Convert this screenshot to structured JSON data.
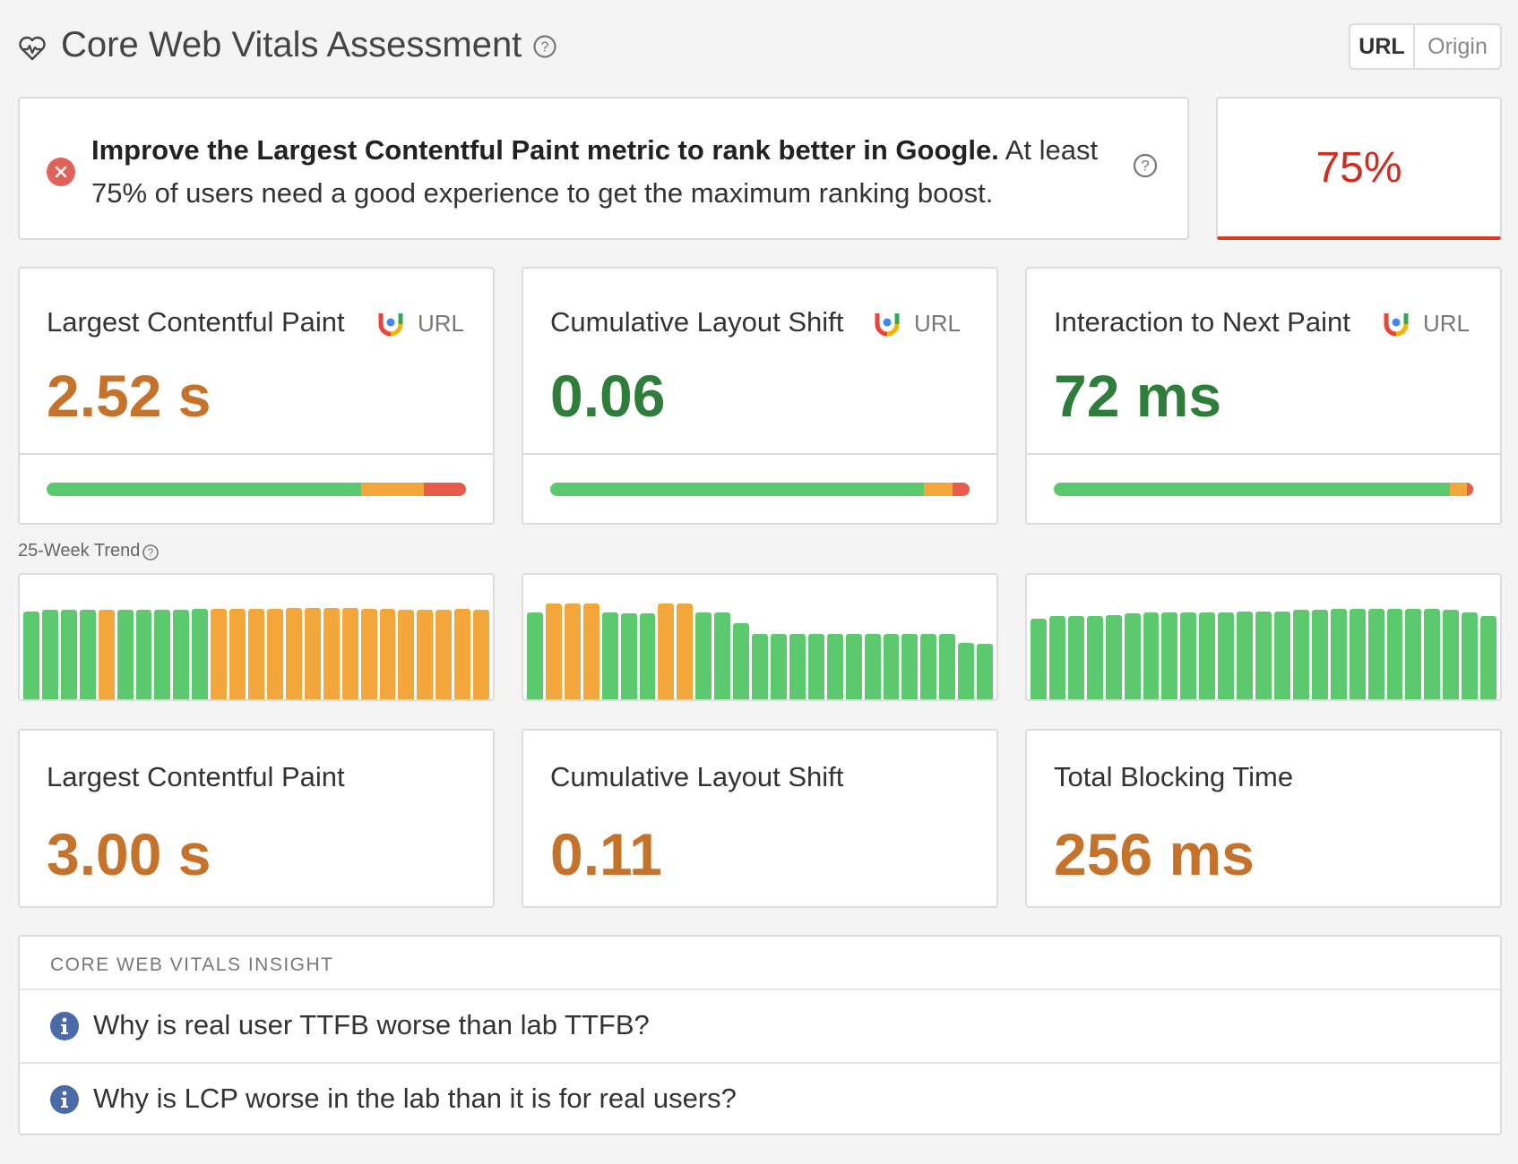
{
  "header": {
    "title": "Core Web Vitals Assessment",
    "icon": "heart-pulse-icon",
    "toggle": {
      "url_label": "URL",
      "origin_label": "Origin",
      "selected": "URL"
    }
  },
  "assessment": {
    "status": "fail",
    "message_bold": "Improve the Largest Contentful Paint metric to rank better in Google.",
    "message_rest": "At least 75% of users need a good experience to get the maximum ranking boost.",
    "score": "75%",
    "score_color": "#cc2f1f"
  },
  "field_metrics": [
    {
      "title": "Largest Contentful Paint",
      "scope": "URL",
      "value": "2.52 s",
      "status": "needs-improvement",
      "distribution": {
        "good": 0.75,
        "needs_improvement": 0.15,
        "poor": 0.1
      }
    },
    {
      "title": "Cumulative Layout Shift",
      "scope": "URL",
      "value": "0.06",
      "status": "good",
      "distribution": {
        "good": 0.89,
        "needs_improvement": 0.07,
        "poor": 0.04
      }
    },
    {
      "title": "Interaction to Next Paint",
      "scope": "URL",
      "value": "72 ms",
      "status": "good",
      "distribution": {
        "good": 0.945,
        "needs_improvement": 0.04,
        "poor": 0.015
      }
    }
  ],
  "trend": {
    "label": "25-Week Trend",
    "series": [
      {
        "metric": "Largest Contentful Paint",
        "values": [
          0.75,
          0.76,
          0.76,
          0.76,
          0.76,
          0.76,
          0.76,
          0.76,
          0.76,
          0.77,
          0.77,
          0.77,
          0.77,
          0.77,
          0.78,
          0.78,
          0.78,
          0.78,
          0.77,
          0.77,
          0.76,
          0.76,
          0.76,
          0.77,
          0.76
        ],
        "status": [
          "good",
          "good",
          "good",
          "good",
          "ni",
          "good",
          "good",
          "good",
          "good",
          "good",
          "ni",
          "ni",
          "ni",
          "ni",
          "ni",
          "ni",
          "ni",
          "ni",
          "ni",
          "ni",
          "ni",
          "ni",
          "ni",
          "ni",
          "ni"
        ]
      },
      {
        "metric": "Cumulative Layout Shift",
        "values": [
          0.74,
          0.82,
          0.82,
          0.82,
          0.74,
          0.73,
          0.73,
          0.82,
          0.82,
          0.74,
          0.74,
          0.65,
          0.56,
          0.56,
          0.56,
          0.56,
          0.56,
          0.56,
          0.56,
          0.56,
          0.56,
          0.56,
          0.56,
          0.48,
          0.47
        ],
        "status": [
          "good",
          "ni",
          "ni",
          "ni",
          "good",
          "good",
          "good",
          "ni",
          "ni",
          "good",
          "good",
          "good",
          "good",
          "good",
          "good",
          "good",
          "good",
          "good",
          "good",
          "good",
          "good",
          "good",
          "good",
          "good",
          "good"
        ]
      },
      {
        "metric": "Interaction to Next Paint",
        "values": [
          0.69,
          0.71,
          0.71,
          0.71,
          0.72,
          0.73,
          0.74,
          0.74,
          0.74,
          0.74,
          0.74,
          0.75,
          0.75,
          0.75,
          0.76,
          0.76,
          0.77,
          0.77,
          0.77,
          0.77,
          0.77,
          0.77,
          0.76,
          0.74,
          0.71
        ],
        "status": [
          "good",
          "good",
          "good",
          "good",
          "good",
          "good",
          "good",
          "good",
          "good",
          "good",
          "good",
          "good",
          "good",
          "good",
          "good",
          "good",
          "good",
          "good",
          "good",
          "good",
          "good",
          "good",
          "good",
          "good",
          "good"
        ]
      }
    ]
  },
  "lab_metrics": [
    {
      "title": "Largest Contentful Paint",
      "value": "3.00 s",
      "status": "needs-improvement"
    },
    {
      "title": "Cumulative Layout Shift",
      "value": "0.11",
      "status": "needs-improvement"
    },
    {
      "title": "Total Blocking Time",
      "value": "256 ms",
      "status": "needs-improvement"
    }
  ],
  "insight": {
    "heading": "CORE WEB VITALS INSIGHT",
    "items": [
      {
        "text": "Why is real user TTFB worse than lab TTFB?",
        "icon": "info-icon"
      },
      {
        "text": "Why is LCP worse in the lab than it is for real users?",
        "icon": "info-icon"
      }
    ]
  },
  "colors": {
    "good": "#5cc96e",
    "needs_improvement": "#f3a63a",
    "poor": "#e85a4a",
    "value_orange": "#c5722a",
    "value_green": "#2e7d3b"
  }
}
